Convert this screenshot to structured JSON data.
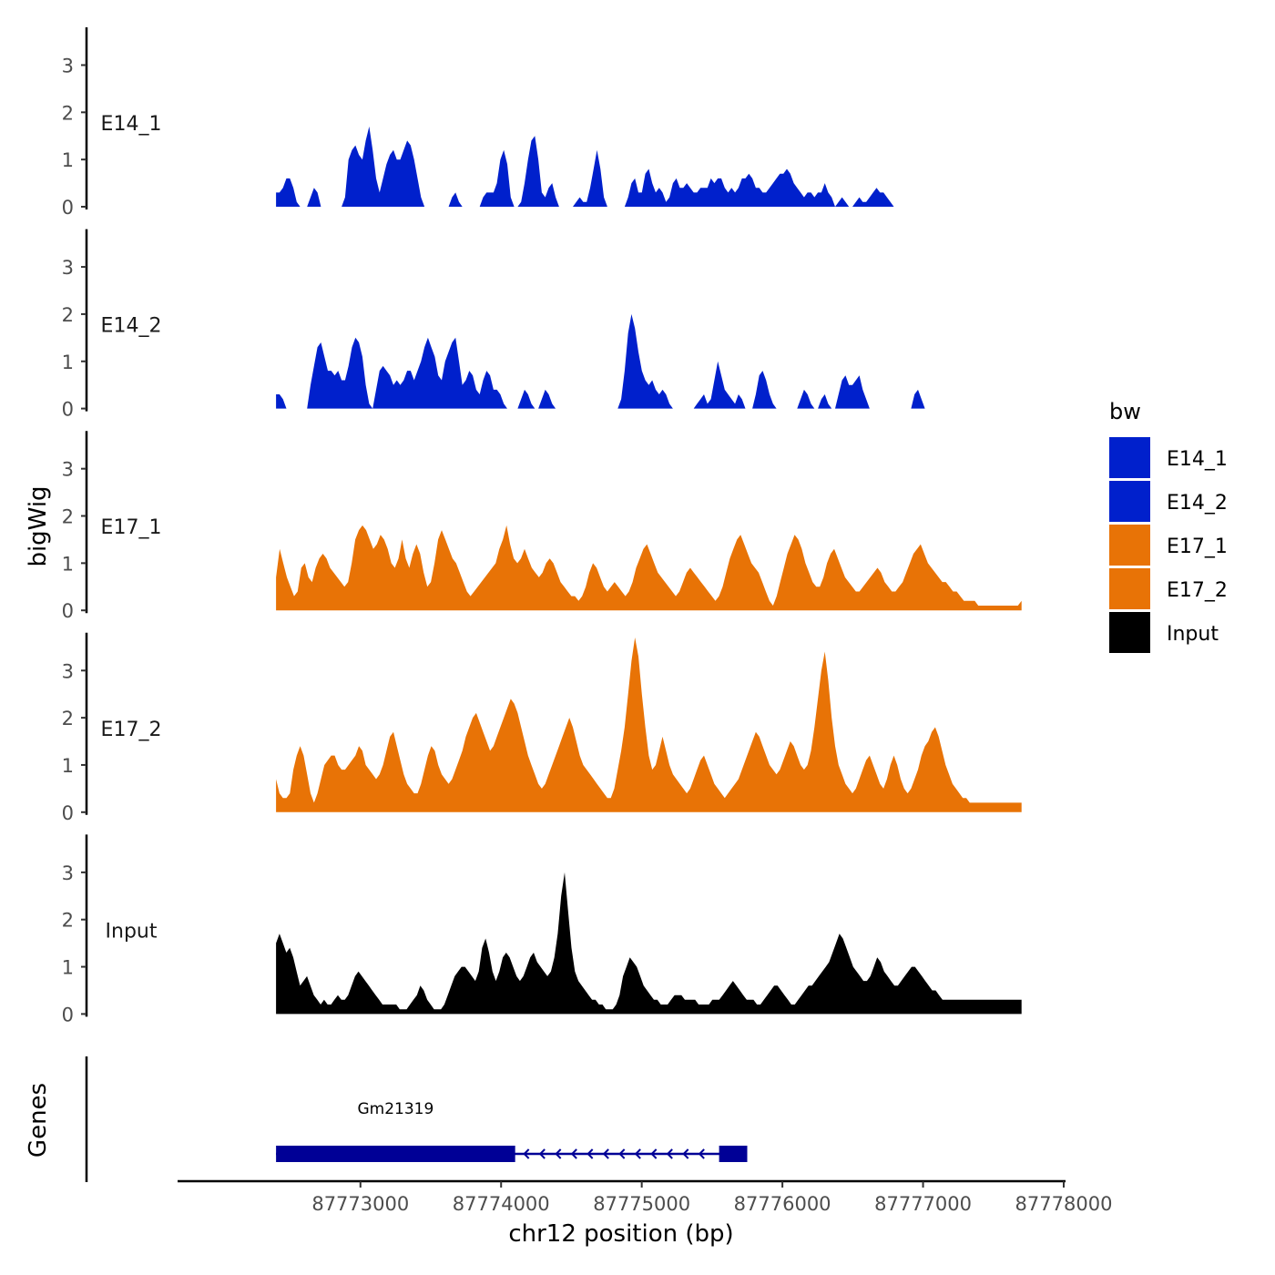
{
  "chart_data": {
    "type": "area",
    "title": "",
    "ylabel": "bigWig",
    "xlabel": "chr12 position (bp)",
    "genes_label": "Genes",
    "ylim": [
      0,
      3.8
    ],
    "yticks": [
      0,
      1,
      2,
      3
    ],
    "x_range": [
      87772400,
      87777700
    ],
    "xlim": [
      87771700,
      87778000
    ],
    "xticks": [
      87773000,
      87774000,
      87775000,
      87776000,
      87777000,
      87778000
    ],
    "xtick_labels": [
      "87773000",
      "87774000",
      "87775000",
      "87776000",
      "87777000",
      "87778000"
    ],
    "legend": {
      "title": "bw",
      "position": "right",
      "entries": [
        {
          "label": "E14_1",
          "color": "#0020CC"
        },
        {
          "label": "E14_2",
          "color": "#0020CC"
        },
        {
          "label": "E17_1",
          "color": "#E87306"
        },
        {
          "label": "E17_2",
          "color": "#E87306"
        },
        {
          "label": "Input",
          "color": "#000000"
        }
      ]
    },
    "series": [
      {
        "name": "E14_1",
        "color": "#0020CC",
        "values": [
          0.3,
          0.3,
          0.4,
          0.6,
          0.6,
          0.4,
          0.1,
          0,
          0,
          0,
          0.2,
          0.4,
          0.3,
          0,
          0,
          0,
          0,
          0,
          0,
          0,
          0.2,
          1.0,
          1.2,
          1.3,
          1.1,
          1.0,
          1.4,
          1.7,
          1.2,
          0.6,
          0.3,
          0.6,
          0.9,
          1.1,
          1.2,
          1.0,
          1.0,
          1.2,
          1.4,
          1.3,
          1.0,
          0.6,
          0.2,
          0,
          0,
          0,
          0,
          0,
          0,
          0,
          0,
          0.2,
          0.3,
          0.1,
          0,
          0,
          0,
          0,
          0,
          0,
          0.2,
          0.3,
          0.3,
          0.3,
          0.5,
          1.0,
          1.2,
          0.9,
          0.2,
          0,
          0,
          0.1,
          0.5,
          1.0,
          1.4,
          1.5,
          1.0,
          0.3,
          0.2,
          0.4,
          0.5,
          0.2,
          0,
          0,
          0,
          0,
          0,
          0.1,
          0.2,
          0.1,
          0.1,
          0.4,
          0.8,
          1.2,
          0.8,
          0.2,
          0,
          0,
          0,
          0,
          0,
          0,
          0.2,
          0.5,
          0.6,
          0.3,
          0.3,
          0.7,
          0.8,
          0.5,
          0.3,
          0.4,
          0.3,
          0.1,
          0.2,
          0.5,
          0.6,
          0.4,
          0.4,
          0.5,
          0.4,
          0.3,
          0.3,
          0.4,
          0.4,
          0.4,
          0.6,
          0.5,
          0.6,
          0.6,
          0.4,
          0.3,
          0.4,
          0.3,
          0.4,
          0.6,
          0.6,
          0.7,
          0.6,
          0.4,
          0.4,
          0.3,
          0.3,
          0.4,
          0.5,
          0.6,
          0.7,
          0.7,
          0.8,
          0.7,
          0.5,
          0.4,
          0.3,
          0.2,
          0.3,
          0.3,
          0.2,
          0.3,
          0.3,
          0.5,
          0.3,
          0.2,
          0,
          0.1,
          0.2,
          0.1,
          0,
          0,
          0.1,
          0.2,
          0.1,
          0.1,
          0.2,
          0.3,
          0.4,
          0.3,
          0.3,
          0.2,
          0.1,
          0,
          0,
          0,
          0,
          0,
          0,
          0,
          0,
          0,
          0,
          0,
          0,
          0,
          0,
          0,
          0,
          0,
          0,
          0,
          0,
          0,
          0,
          0,
          0,
          0,
          0,
          0,
          0,
          0,
          0,
          0,
          0,
          0,
          0,
          0,
          0,
          0,
          0
        ]
      },
      {
        "name": "E14_2",
        "color": "#0020CC",
        "values": [
          0.3,
          0.3,
          0.2,
          0,
          0,
          0,
          0,
          0,
          0,
          0,
          0.5,
          0.9,
          1.3,
          1.4,
          1.1,
          0.8,
          0.8,
          0.7,
          0.8,
          0.6,
          0.6,
          0.9,
          1.3,
          1.5,
          1.4,
          1.1,
          0.5,
          0.1,
          0,
          0.4,
          0.8,
          0.9,
          0.8,
          0.7,
          0.5,
          0.6,
          0.5,
          0.6,
          0.8,
          0.8,
          0.6,
          0.8,
          1.0,
          1.3,
          1.5,
          1.3,
          1.1,
          0.7,
          0.6,
          1.0,
          1.2,
          1.4,
          1.5,
          1.0,
          0.5,
          0.6,
          0.8,
          0.7,
          0.4,
          0.3,
          0.6,
          0.8,
          0.7,
          0.4,
          0.4,
          0.3,
          0.1,
          0,
          0,
          0,
          0,
          0.2,
          0.4,
          0.3,
          0.1,
          0,
          0,
          0.2,
          0.4,
          0.3,
          0.1,
          0,
          0,
          0,
          0,
          0,
          0,
          0,
          0,
          0,
          0,
          0,
          0,
          0,
          0,
          0,
          0,
          0,
          0,
          0,
          0.2,
          0.8,
          1.6,
          2.0,
          1.7,
          1.2,
          0.8,
          0.6,
          0.5,
          0.6,
          0.4,
          0.3,
          0.4,
          0.3,
          0.1,
          0,
          0,
          0,
          0,
          0,
          0,
          0,
          0.1,
          0.2,
          0.3,
          0.1,
          0.2,
          0.6,
          1.0,
          0.7,
          0.4,
          0.3,
          0.2,
          0.1,
          0.3,
          0.2,
          0,
          0,
          0,
          0.3,
          0.7,
          0.8,
          0.6,
          0.3,
          0.1,
          0,
          0,
          0,
          0,
          0,
          0,
          0,
          0.2,
          0.4,
          0.3,
          0.1,
          0,
          0,
          0.2,
          0.3,
          0.1,
          0,
          0,
          0.3,
          0.6,
          0.7,
          0.5,
          0.5,
          0.6,
          0.7,
          0.4,
          0.2,
          0,
          0,
          0,
          0,
          0,
          0,
          0,
          0,
          0,
          0,
          0,
          0,
          0,
          0.3,
          0.4,
          0.2,
          0,
          0,
          0,
          0,
          0,
          0,
          0,
          0,
          0,
          0,
          0,
          0,
          0,
          0,
          0,
          0,
          0,
          0,
          0,
          0,
          0,
          0,
          0,
          0,
          0,
          0,
          0,
          0,
          0
        ]
      },
      {
        "name": "E17_1",
        "color": "#E87306",
        "values": [
          0.7,
          1.3,
          1.0,
          0.7,
          0.5,
          0.3,
          0.4,
          0.9,
          1.0,
          0.7,
          0.6,
          0.9,
          1.1,
          1.2,
          1.1,
          0.9,
          0.8,
          0.7,
          0.6,
          0.5,
          0.6,
          1.0,
          1.5,
          1.7,
          1.8,
          1.7,
          1.5,
          1.3,
          1.4,
          1.6,
          1.5,
          1.3,
          1.0,
          0.9,
          1.1,
          1.5,
          1.1,
          0.9,
          1.2,
          1.4,
          1.2,
          0.8,
          0.5,
          0.6,
          1.0,
          1.5,
          1.7,
          1.5,
          1.3,
          1.1,
          1.0,
          0.8,
          0.6,
          0.4,
          0.3,
          0.4,
          0.5,
          0.6,
          0.7,
          0.8,
          0.9,
          1.0,
          1.3,
          1.5,
          1.8,
          1.4,
          1.1,
          1.0,
          1.1,
          1.3,
          1.1,
          0.9,
          0.8,
          0.7,
          0.8,
          1.0,
          1.1,
          1.0,
          0.8,
          0.6,
          0.5,
          0.4,
          0.3,
          0.3,
          0.2,
          0.3,
          0.5,
          0.8,
          1.0,
          0.9,
          0.7,
          0.5,
          0.4,
          0.5,
          0.6,
          0.5,
          0.4,
          0.3,
          0.4,
          0.6,
          0.9,
          1.1,
          1.3,
          1.4,
          1.2,
          1.0,
          0.8,
          0.7,
          0.6,
          0.5,
          0.4,
          0.3,
          0.4,
          0.6,
          0.8,
          0.9,
          0.8,
          0.7,
          0.6,
          0.5,
          0.4,
          0.3,
          0.2,
          0.3,
          0.5,
          0.8,
          1.1,
          1.3,
          1.5,
          1.6,
          1.4,
          1.2,
          1.0,
          0.9,
          0.8,
          0.6,
          0.4,
          0.2,
          0.1,
          0.3,
          0.6,
          0.9,
          1.2,
          1.4,
          1.6,
          1.5,
          1.3,
          1.0,
          0.8,
          0.6,
          0.5,
          0.5,
          0.7,
          1.0,
          1.2,
          1.3,
          1.1,
          0.9,
          0.7,
          0.6,
          0.5,
          0.4,
          0.4,
          0.5,
          0.6,
          0.7,
          0.8,
          0.9,
          0.8,
          0.6,
          0.5,
          0.4,
          0.4,
          0.5,
          0.6,
          0.8,
          1.0,
          1.2,
          1.3,
          1.4,
          1.2,
          1.0,
          0.9,
          0.8,
          0.7,
          0.6,
          0.6,
          0.5,
          0.4,
          0.4,
          0.3,
          0.2,
          0.2,
          0.2,
          0.2,
          0.1,
          0.1,
          0.1,
          0.1,
          0.1,
          0.1,
          0.1,
          0.1,
          0.1,
          0.1,
          0.1,
          0.1,
          0.2
        ]
      },
      {
        "name": "E17_2",
        "color": "#E87306",
        "values": [
          0.7,
          0.4,
          0.3,
          0.3,
          0.4,
          0.9,
          1.2,
          1.4,
          1.2,
          0.8,
          0.4,
          0.2,
          0.4,
          0.7,
          1.0,
          1.1,
          1.2,
          1.2,
          1.0,
          0.9,
          0.9,
          1.0,
          1.1,
          1.2,
          1.4,
          1.3,
          1.0,
          0.9,
          0.8,
          0.7,
          0.8,
          1.0,
          1.3,
          1.6,
          1.7,
          1.4,
          1.1,
          0.8,
          0.6,
          0.5,
          0.4,
          0.4,
          0.6,
          0.9,
          1.2,
          1.4,
          1.3,
          1.0,
          0.8,
          0.7,
          0.6,
          0.7,
          0.9,
          1.1,
          1.3,
          1.6,
          1.8,
          2.0,
          2.1,
          1.9,
          1.7,
          1.5,
          1.3,
          1.4,
          1.6,
          1.8,
          2.0,
          2.2,
          2.4,
          2.3,
          2.1,
          1.8,
          1.5,
          1.2,
          1.0,
          0.8,
          0.6,
          0.5,
          0.6,
          0.8,
          1.0,
          1.2,
          1.4,
          1.6,
          1.8,
          2.0,
          1.8,
          1.5,
          1.2,
          1.0,
          0.9,
          0.8,
          0.7,
          0.6,
          0.5,
          0.4,
          0.3,
          0.3,
          0.5,
          0.9,
          1.3,
          1.8,
          2.5,
          3.2,
          3.7,
          3.3,
          2.5,
          1.8,
          1.2,
          0.9,
          1.0,
          1.3,
          1.6,
          1.3,
          1.0,
          0.8,
          0.7,
          0.6,
          0.5,
          0.4,
          0.5,
          0.7,
          0.9,
          1.1,
          1.2,
          1.0,
          0.8,
          0.6,
          0.5,
          0.4,
          0.3,
          0.4,
          0.5,
          0.6,
          0.7,
          0.9,
          1.1,
          1.3,
          1.5,
          1.7,
          1.6,
          1.4,
          1.2,
          1.0,
          0.9,
          0.8,
          0.9,
          1.1,
          1.3,
          1.5,
          1.4,
          1.2,
          1.0,
          0.9,
          1.0,
          1.3,
          1.8,
          2.4,
          3.0,
          3.4,
          2.8,
          2.0,
          1.4,
          1.0,
          0.8,
          0.6,
          0.5,
          0.4,
          0.5,
          0.7,
          0.9,
          1.1,
          1.2,
          1.0,
          0.8,
          0.6,
          0.5,
          0.7,
          1.0,
          1.2,
          1.0,
          0.7,
          0.5,
          0.4,
          0.5,
          0.7,
          0.9,
          1.2,
          1.4,
          1.5,
          1.7,
          1.8,
          1.6,
          1.3,
          1.0,
          0.8,
          0.6,
          0.5,
          0.4,
          0.3,
          0.3,
          0.2,
          0.2,
          0.2,
          0.2,
          0.2,
          0.2,
          0.2,
          0.2,
          0.2,
          0.2,
          0.2,
          0.2,
          0.2,
          0.2,
          0.2,
          0.2
        ]
      },
      {
        "name": "Input",
        "color": "#000000",
        "values": [
          1.5,
          1.7,
          1.5,
          1.3,
          1.4,
          1.2,
          0.9,
          0.6,
          0.7,
          0.8,
          0.6,
          0.4,
          0.3,
          0.2,
          0.3,
          0.2,
          0.2,
          0.3,
          0.4,
          0.3,
          0.3,
          0.4,
          0.6,
          0.8,
          0.9,
          0.8,
          0.7,
          0.6,
          0.5,
          0.4,
          0.3,
          0.2,
          0.2,
          0.2,
          0.2,
          0.2,
          0.1,
          0.1,
          0.1,
          0.2,
          0.3,
          0.4,
          0.6,
          0.5,
          0.3,
          0.2,
          0.1,
          0.1,
          0.1,
          0.2,
          0.4,
          0.6,
          0.8,
          0.9,
          1.0,
          1.0,
          0.9,
          0.8,
          0.7,
          0.9,
          1.4,
          1.6,
          1.3,
          0.9,
          0.7,
          0.9,
          1.2,
          1.3,
          1.2,
          1.0,
          0.8,
          0.7,
          0.8,
          1.0,
          1.2,
          1.3,
          1.1,
          1.0,
          0.9,
          0.8,
          0.9,
          1.2,
          1.7,
          2.5,
          3.0,
          2.2,
          1.4,
          0.9,
          0.7,
          0.6,
          0.5,
          0.4,
          0.3,
          0.3,
          0.2,
          0.2,
          0.1,
          0.1,
          0.1,
          0.2,
          0.4,
          0.8,
          1.0,
          1.2,
          1.1,
          1.0,
          0.8,
          0.6,
          0.5,
          0.4,
          0.3,
          0.3,
          0.2,
          0.2,
          0.2,
          0.3,
          0.4,
          0.4,
          0.4,
          0.3,
          0.3,
          0.3,
          0.3,
          0.2,
          0.2,
          0.2,
          0.2,
          0.3,
          0.3,
          0.3,
          0.4,
          0.5,
          0.6,
          0.7,
          0.6,
          0.5,
          0.4,
          0.3,
          0.3,
          0.3,
          0.2,
          0.2,
          0.3,
          0.4,
          0.5,
          0.6,
          0.6,
          0.5,
          0.4,
          0.3,
          0.2,
          0.2,
          0.3,
          0.4,
          0.5,
          0.6,
          0.6,
          0.7,
          0.8,
          0.9,
          1.0,
          1.1,
          1.3,
          1.5,
          1.7,
          1.6,
          1.4,
          1.2,
          1.0,
          0.9,
          0.8,
          0.7,
          0.7,
          0.8,
          1.0,
          1.2,
          1.1,
          0.9,
          0.8,
          0.7,
          0.6,
          0.6,
          0.7,
          0.8,
          0.9,
          1.0,
          1.0,
          0.9,
          0.8,
          0.7,
          0.6,
          0.5,
          0.5,
          0.4,
          0.3,
          0.3,
          0.3,
          0.3,
          0.3,
          0.3,
          0.3,
          0.3,
          0.3,
          0.3,
          0.3,
          0.3,
          0.3,
          0.3,
          0.3,
          0.3,
          0.3,
          0.3,
          0.3,
          0.3,
          0.3,
          0.3,
          0.3,
          0.3
        ]
      }
    ],
    "genes": [
      {
        "name": "Gm21319",
        "strand": "-",
        "start": 87772400,
        "end": 87775750,
        "exons": [
          [
            87772400,
            87774100
          ],
          [
            87775550,
            87775750
          ]
        ],
        "color": "#000096"
      }
    ]
  }
}
